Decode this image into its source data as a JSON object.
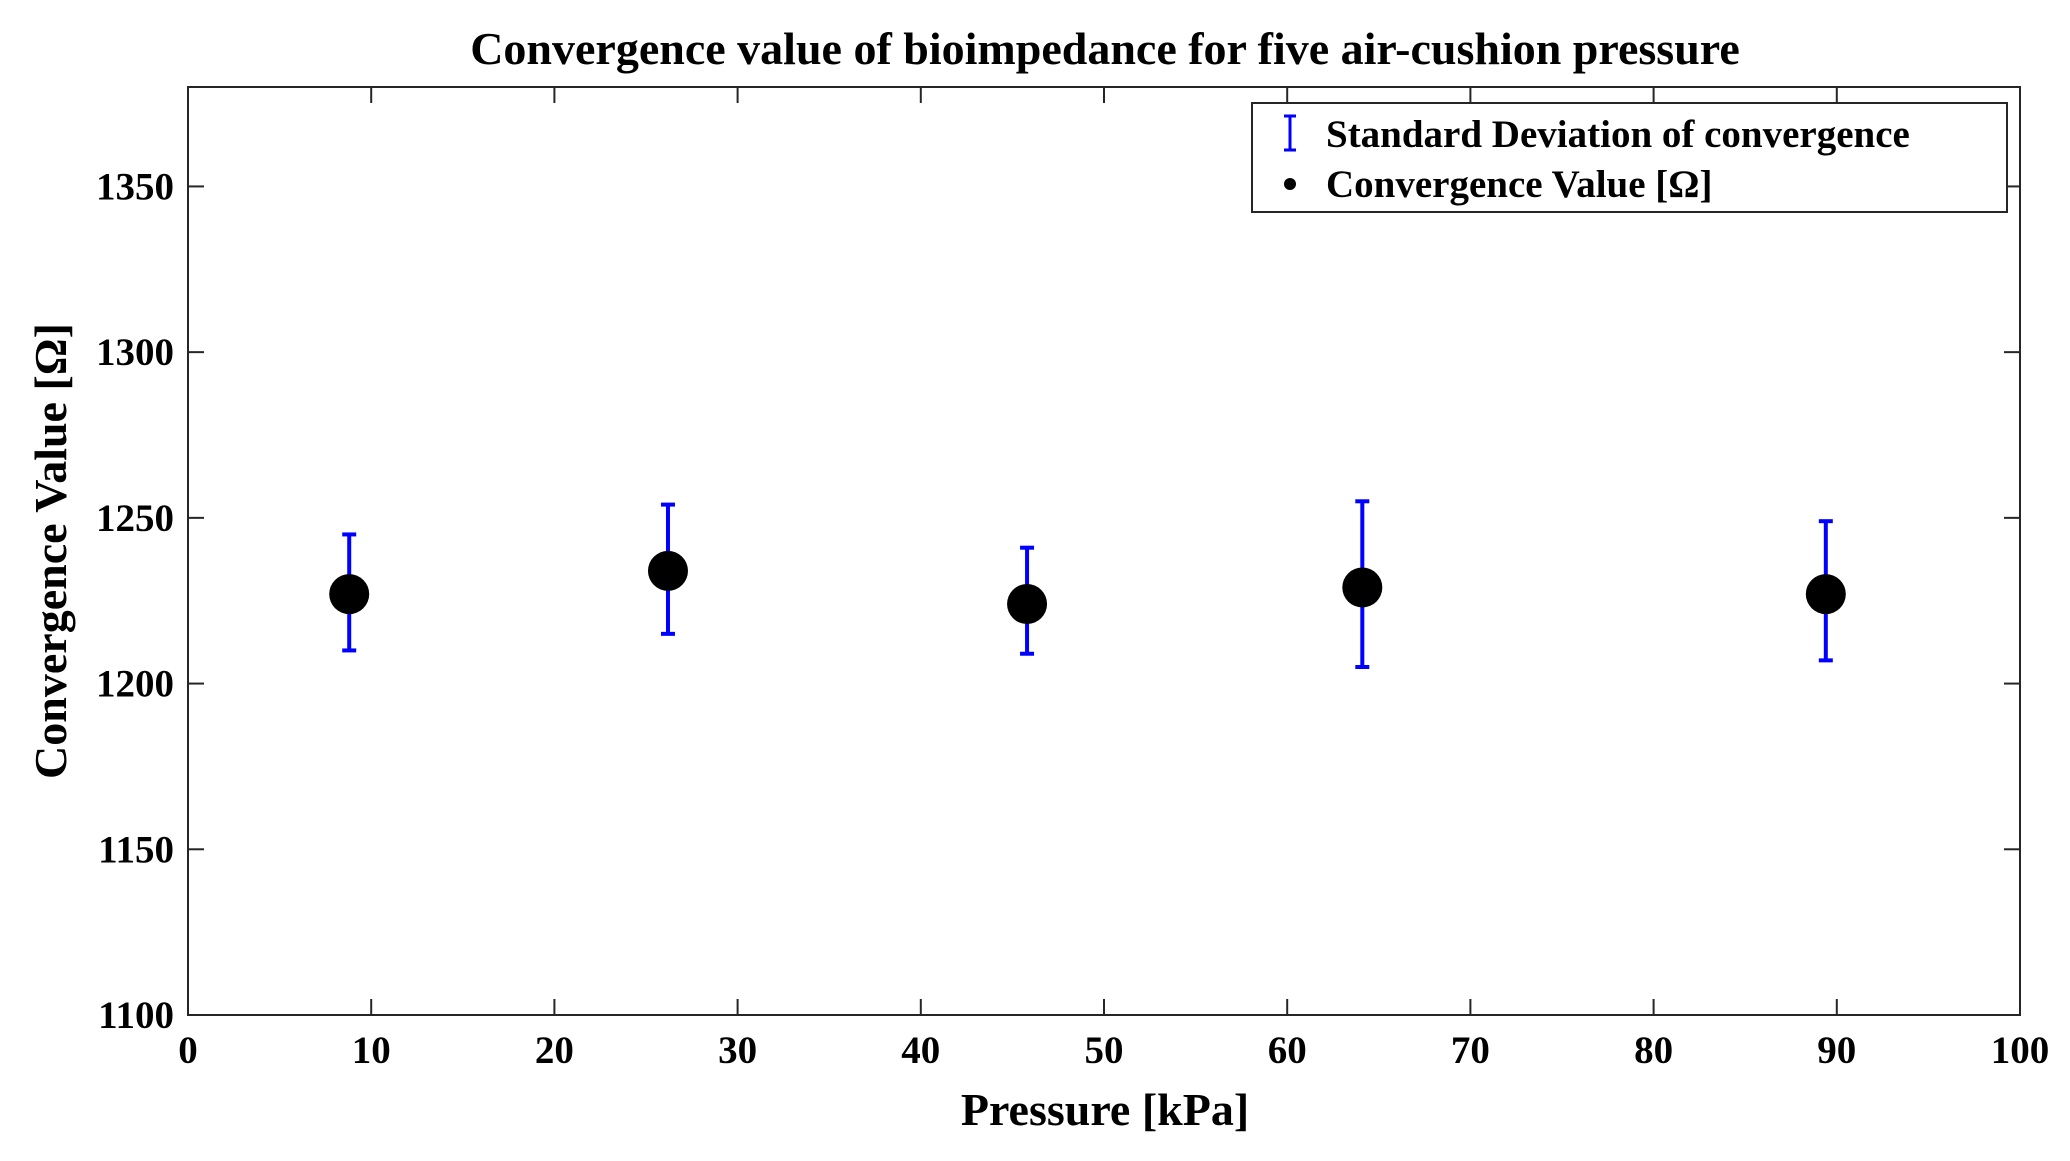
{
  "chart_data": {
    "type": "scatter",
    "title": "Convergence value of bioimpedance for five air-cushion pressure",
    "xlabel": "Pressure [kPa]",
    "ylabel": "Convergence Value [Ω]",
    "xlim": [
      0,
      100
    ],
    "ylim": [
      1100,
      1380
    ],
    "x_ticks": [
      0,
      10,
      20,
      30,
      40,
      50,
      60,
      70,
      80,
      90,
      100
    ],
    "y_ticks": [
      1100,
      1150,
      1200,
      1250,
      1300,
      1350
    ],
    "grid": false,
    "legend_position": "top-right",
    "colors": {
      "errorbar": "#0000ff",
      "marker": "#000000",
      "axis": "#000000"
    },
    "series": [
      {
        "name": "Standard Deviation of convergence",
        "kind": "errorbar",
        "x": [
          8.8,
          26.2,
          45.8,
          64.1,
          89.4
        ],
        "lower": [
          1210,
          1215,
          1209,
          1205,
          1207
        ],
        "upper": [
          1245,
          1254,
          1241,
          1255,
          1249
        ]
      },
      {
        "name": "Convergence Value [Ω]",
        "kind": "marker",
        "x": [
          8.8,
          26.2,
          45.8,
          64.1,
          89.4
        ],
        "y": [
          1227,
          1234,
          1224,
          1229,
          1227
        ]
      }
    ]
  }
}
